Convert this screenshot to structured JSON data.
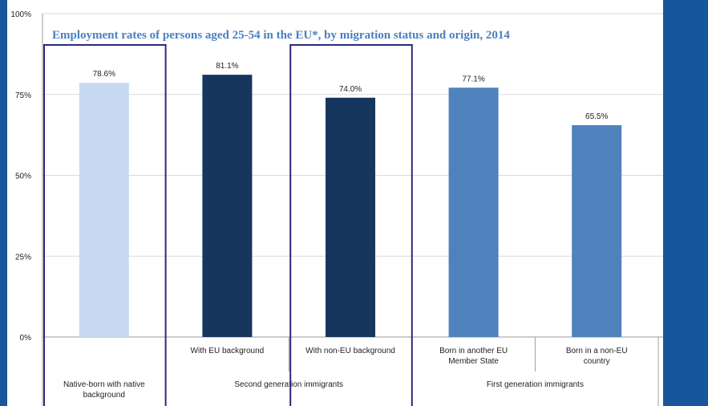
{
  "chart_data": {
    "type": "bar",
    "title": "Employment rates of persons aged 25-54 in the EU*, by migration status and origin, 2014",
    "categories": [
      "Native-born with native background",
      "With EU background",
      "With non-EU background",
      "Born in another EU Member State",
      "Born in a non-EU country"
    ],
    "values": [
      78.6,
      81.1,
      74.0,
      77.1,
      65.5
    ],
    "value_labels": [
      "78.6%",
      "81.1%",
      "74.0%",
      "77.1%",
      "65.5%"
    ],
    "colors": [
      "#c6d9f1",
      "#17365d",
      "#17365d",
      "#4f81bd",
      "#4f81bd"
    ],
    "groups": [
      {
        "label": "Native-born with native background",
        "members": [
          0
        ]
      },
      {
        "label": "Second generation immigrants",
        "members": [
          1,
          2
        ]
      },
      {
        "label": "First generation immigrants",
        "members": [
          3,
          4
        ]
      }
    ],
    "subcategory_labels": [
      "",
      "With EU background",
      "With non-EU background",
      "Born in another EU Member State",
      "Born in a non-EU country"
    ],
    "yticks": [
      "0%",
      "25%",
      "50%",
      "75%",
      "100%"
    ],
    "ylim": [
      0,
      100
    ],
    "grid": true,
    "highlighted_categories": [
      0,
      2
    ],
    "highlight_color": "#2b2a7a"
  },
  "background_color": "#15579a"
}
